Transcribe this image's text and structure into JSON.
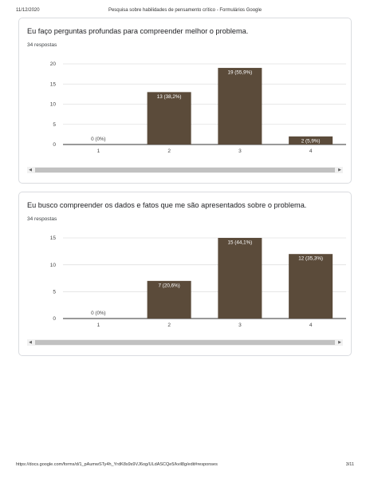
{
  "header": {
    "date": "11/12/2020",
    "title": "Pesquisa sobre habilidades de pensamento crítico - Formulários Google"
  },
  "footer": {
    "url": "https://docs.google.com/forms/d/1_pAumwSTy4h_YrdK8s9s9VJ6og/ULdASCQe5/kvil8g/edit#responses",
    "page": "3/11"
  },
  "colors": {
    "bar": "#5b4b3a",
    "grid": "#e0e0e0",
    "axis": "#333333"
  },
  "questions": [
    {
      "title": "Eu faço perguntas profundas para compreender melhor o problema.",
      "count_label": "34 respostas"
    },
    {
      "title": "Eu busco compreender os dados e fatos que me são apresentados sobre o problema.",
      "count_label": "34 respostas"
    }
  ],
  "scrollbar": {
    "left_icon": "◀",
    "right_icon": "▶"
  },
  "chart_data": [
    {
      "type": "bar",
      "categories": [
        "1",
        "2",
        "3",
        "4"
      ],
      "values": [
        0,
        13,
        19,
        2
      ],
      "labels": [
        "0 (0%)",
        "13 (38,2%)",
        "19 (55,9%)",
        "2 (5,9%)"
      ],
      "yticks": [
        0,
        5,
        10,
        15,
        20
      ],
      "ylim": [
        0,
        20
      ],
      "grid": true
    },
    {
      "type": "bar",
      "categories": [
        "1",
        "2",
        "3",
        "4"
      ],
      "values": [
        0,
        7,
        15,
        12
      ],
      "labels": [
        "0 (0%)",
        "7 (20,6%)",
        "15 (44,1%)",
        "12 (35,3%)"
      ],
      "yticks": [
        0,
        5,
        10,
        15
      ],
      "ylim": [
        0,
        15
      ],
      "grid": true
    }
  ]
}
